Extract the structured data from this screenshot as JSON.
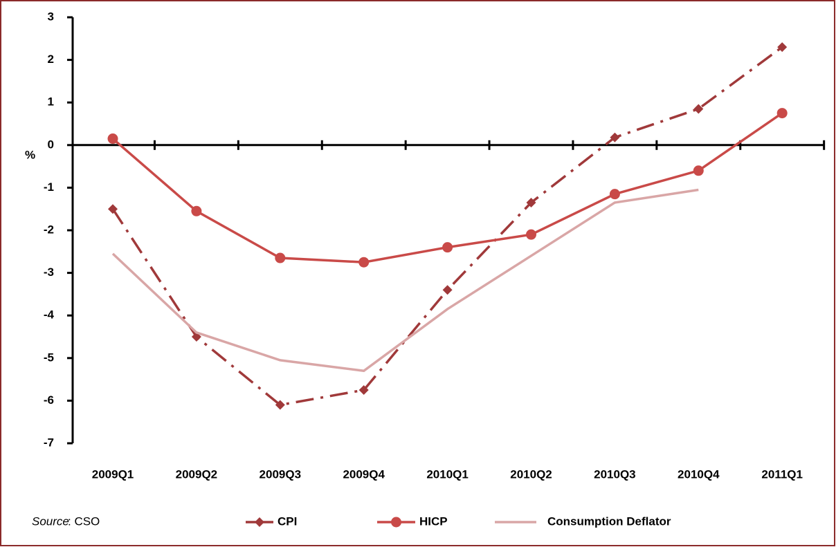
{
  "chart_data": {
    "type": "line",
    "categories": [
      "2009Q1",
      "2009Q2",
      "2009Q3",
      "2009Q4",
      "2010Q1",
      "2010Q2",
      "2010Q3",
      "2010Q4",
      "2011Q1"
    ],
    "y_label": "%",
    "ylim": [
      -7,
      3
    ],
    "yticks": [
      -7,
      -6,
      -5,
      -4,
      -3,
      -2,
      -1,
      0,
      1,
      2,
      3
    ],
    "series": [
      {
        "name": "CPI",
        "color": "#a0393a",
        "marker": "diamond",
        "dash": "dashdot",
        "values": [
          -1.5,
          -4.5,
          -6.1,
          -5.75,
          -3.4,
          -1.35,
          0.18,
          0.85,
          2.3
        ]
      },
      {
        "name": "HICP",
        "color": "#c94a48",
        "marker": "circle",
        "dash": "solid",
        "values": [
          0.15,
          -1.55,
          -2.65,
          -2.75,
          -2.4,
          -2.1,
          -1.15,
          -0.6,
          0.75
        ]
      },
      {
        "name": "Consumption  Deflator",
        "color": "#d9a6a6",
        "marker": "none",
        "dash": "solid",
        "values": [
          -2.55,
          -4.4,
          -5.05,
          -5.3,
          -3.85,
          -2.6,
          -1.35,
          -1.05,
          null
        ]
      }
    ],
    "source_label": "Source",
    "source_text": ": CSO"
  }
}
